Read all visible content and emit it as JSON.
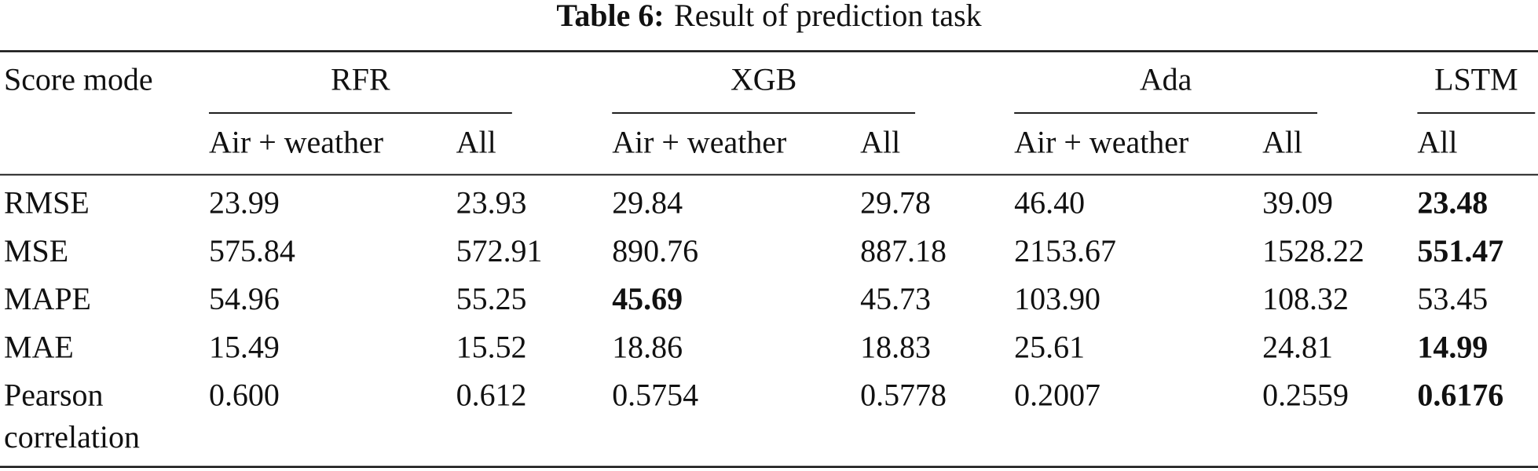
{
  "table": {
    "title_label": "Table 6:",
    "title_text": "Result of prediction task",
    "corner": "Score mode",
    "groups": [
      {
        "name": "RFR",
        "subheaders": [
          "Air + weather",
          "All"
        ]
      },
      {
        "name": "XGB",
        "subheaders": [
          "Air + weather",
          "All"
        ]
      },
      {
        "name": "Ada",
        "subheaders": [
          "Air + weather",
          "All"
        ]
      },
      {
        "name": "LSTM",
        "subheaders": [
          "All"
        ]
      }
    ],
    "rows": [
      {
        "label": "RMSE",
        "values": [
          "23.99",
          "23.93",
          "29.84",
          "29.78",
          "46.40",
          "39.09",
          "23.48"
        ],
        "bold_column": 6
      },
      {
        "label": "MSE",
        "values": [
          "575.84",
          "572.91",
          "890.76",
          "887.18",
          "2153.67",
          "1528.22",
          "551.47"
        ],
        "bold_column": 6
      },
      {
        "label": "MAPE",
        "values": [
          "54.96",
          "55.25",
          "45.69",
          "45.73",
          "103.90",
          "108.32",
          "53.45"
        ],
        "bold_column": 2
      },
      {
        "label": "MAE",
        "values": [
          "15.49",
          "15.52",
          "18.86",
          "18.83",
          "25.61",
          "24.81",
          "14.99"
        ],
        "bold_column": 6
      },
      {
        "label": "Pearson correlation",
        "values": [
          "0.600",
          "0.612",
          "0.5754",
          "0.5778",
          "0.2007",
          "0.2559",
          "0.6176"
        ],
        "bold_column": 6
      }
    ]
  }
}
